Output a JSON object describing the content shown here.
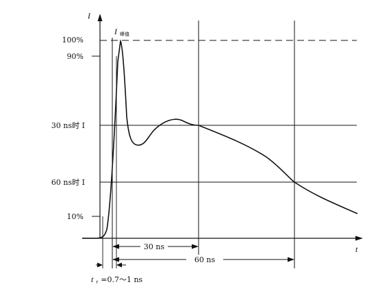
{
  "diagram": {
    "axes": {
      "y_label": "I",
      "x_label": "t"
    },
    "y_levels": {
      "p100": "100%",
      "p90": "90%",
      "at30": "30 ns时 I",
      "at60": "60 ns时 I",
      "p10": "10%"
    },
    "peak_label": {
      "main": "I",
      "sub": "峰值"
    },
    "dimensions": {
      "d30": "30 ns",
      "d60": "60 ns",
      "rise_time": "t",
      "rise_sub": "r",
      "rise_value": "=0.7～1 ns"
    },
    "colors": {
      "ink": "#111111",
      "background": "#ffffff"
    }
  }
}
